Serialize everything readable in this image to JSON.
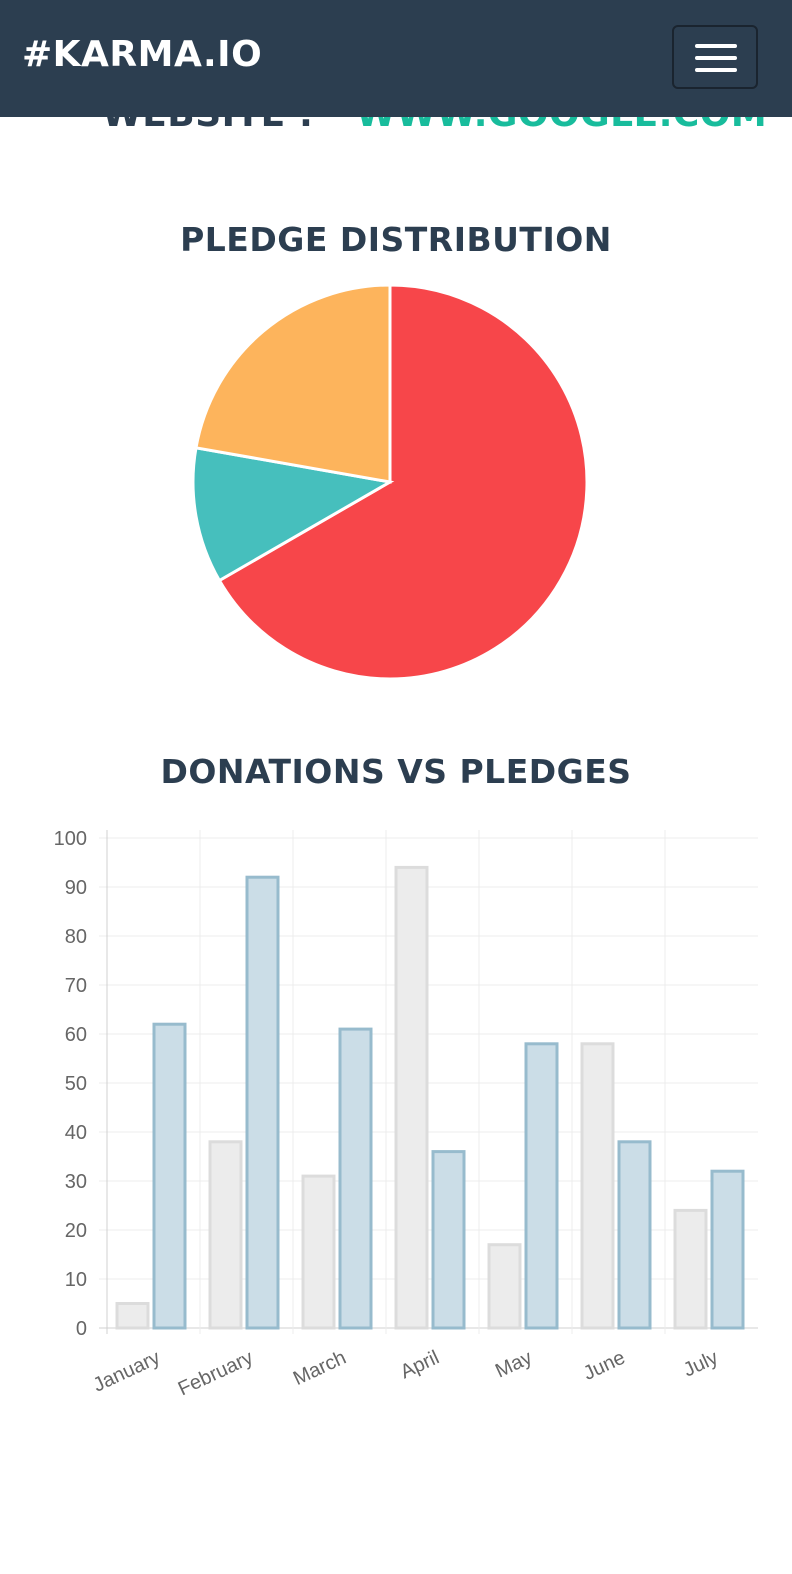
{
  "navbar": {
    "brand": "#KARMA.IO",
    "menu_toggle_icon": "hamburger-icon"
  },
  "contact": {
    "website_label": "WEBSITE :",
    "website_value": "WWW.GOOGLE.COM"
  },
  "colors": {
    "navbar_bg": "#2c3e50",
    "heading": "#2c3e50",
    "link": "#18bc9c",
    "pie_red": "#f7464a",
    "pie_teal": "#46bfbd",
    "pie_orange": "#fdb45c",
    "bar_grey_fill": "#ececec",
    "bar_grey_stroke": "#dcdcdc",
    "bar_blue_fill": "#cbdde7",
    "bar_blue_stroke": "#97bbcd"
  },
  "pie_section": {
    "title": "PLEDGE DISTRIBUTION"
  },
  "bar_section": {
    "title": "DONATIONS VS PLEDGES"
  },
  "chart_data": [
    {
      "type": "pie",
      "title": "PLEDGE DISTRIBUTION",
      "slices": [
        {
          "value": 300,
          "color": "#f7464a"
        },
        {
          "value": 50,
          "color": "#46bfbd"
        },
        {
          "value": 100,
          "color": "#fdb45c"
        }
      ]
    },
    {
      "type": "bar",
      "title": "DONATIONS VS PLEDGES",
      "categories": [
        "January",
        "February",
        "March",
        "April",
        "May",
        "June",
        "July"
      ],
      "series": [
        {
          "values": [
            5,
            38,
            31,
            94,
            17,
            58,
            24
          ],
          "fill": "#ececec",
          "stroke": "#dcdcdc"
        },
        {
          "values": [
            62,
            92,
            61,
            36,
            58,
            38,
            32
          ],
          "fill": "#cbdde7",
          "stroke": "#97bbcd"
        }
      ],
      "yticks": [
        0,
        10,
        20,
        30,
        40,
        50,
        60,
        70,
        80,
        90,
        100
      ],
      "ylim": [
        0,
        100
      ],
      "grid": true,
      "legend": "none"
    }
  ]
}
